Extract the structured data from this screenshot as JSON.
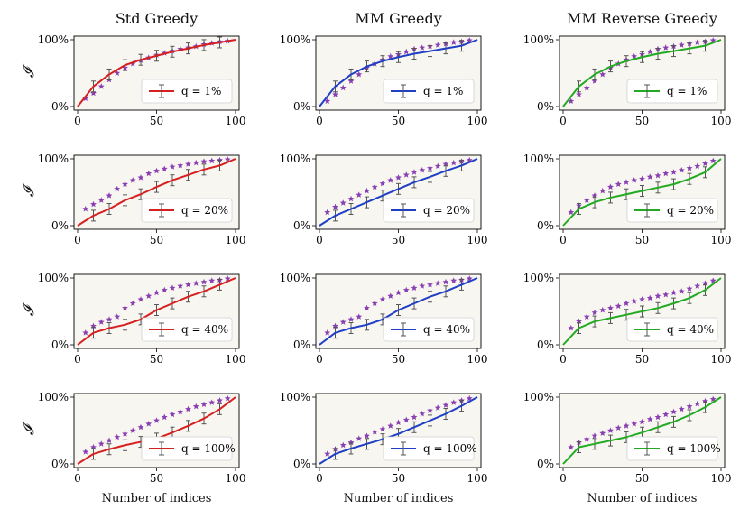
{
  "chart_data": {
    "type": "line",
    "layout": "3x4 grid of subplots",
    "columns": [
      {
        "title": "Std Greedy",
        "color": "#d62020"
      },
      {
        "title": "MM Greedy",
        "color": "#1f3fc4"
      },
      {
        "title": "MM Reverse Greedy",
        "color": "#22aa22"
      }
    ],
    "rows": [
      {
        "q_label": "q = 1%"
      },
      {
        "q_label": "q = 20%"
      },
      {
        "q_label": "q = 40%"
      },
      {
        "q_label": "q = 100%"
      }
    ],
    "xlabel": "Number of indices",
    "ylabel": "𝓘",
    "xlim": [
      0,
      100
    ],
    "ylim": [
      0,
      100
    ],
    "xticks": [
      "0",
      "50",
      "100"
    ],
    "yticks": [
      "0%",
      "100%"
    ],
    "marker_color": "#8a3fb2",
    "error_bar_color": "#555555",
    "panels": [
      [
        {
          "x": [
            0,
            10,
            20,
            30,
            40,
            50,
            60,
            70,
            80,
            90,
            100
          ],
          "y": [
            0,
            30,
            48,
            62,
            70,
            76,
            82,
            87,
            92,
            96,
            100
          ],
          "stars_x": [
            5,
            10,
            15,
            20,
            25,
            30,
            35,
            40,
            45,
            50,
            55,
            60,
            65,
            70,
            75,
            80,
            85,
            90,
            95
          ],
          "stars": [
            12,
            20,
            30,
            40,
            50,
            58,
            64,
            69,
            73,
            77,
            80,
            83,
            86,
            88,
            90,
            93,
            95,
            97,
            98
          ]
        },
        {
          "x": [
            0,
            10,
            20,
            30,
            40,
            50,
            60,
            70,
            80,
            90,
            100
          ],
          "y": [
            0,
            30,
            48,
            60,
            68,
            74,
            79,
            83,
            87,
            91,
            100
          ],
          "stars_x": [
            5,
            10,
            15,
            20,
            25,
            30,
            35,
            40,
            45,
            50,
            55,
            60,
            65,
            70,
            75,
            80,
            85,
            90,
            95
          ],
          "stars": [
            8,
            18,
            28,
            38,
            48,
            58,
            64,
            70,
            75,
            78,
            82,
            86,
            88,
            90,
            92,
            94,
            96,
            97,
            99
          ]
        },
        {
          "x": [
            0,
            10,
            20,
            30,
            40,
            50,
            60,
            70,
            80,
            90,
            100
          ],
          "y": [
            0,
            30,
            48,
            60,
            68,
            74,
            79,
            83,
            87,
            91,
            100
          ],
          "stars_x": [
            5,
            10,
            15,
            20,
            25,
            30,
            35,
            40,
            45,
            50,
            55,
            60,
            65,
            70,
            75,
            80,
            85,
            90,
            95
          ],
          "stars": [
            8,
            18,
            28,
            38,
            48,
            58,
            64,
            70,
            75,
            78,
            82,
            86,
            88,
            90,
            92,
            94,
            96,
            97,
            99
          ]
        }
      ],
      [
        {
          "x": [
            0,
            10,
            20,
            30,
            40,
            50,
            60,
            70,
            80,
            90,
            100
          ],
          "y": [
            0,
            15,
            25,
            38,
            47,
            58,
            68,
            76,
            84,
            90,
            100
          ],
          "stars_x": [
            5,
            10,
            15,
            20,
            25,
            30,
            35,
            40,
            45,
            50,
            55,
            60,
            65,
            70,
            75,
            80,
            85,
            90,
            95
          ],
          "stars": [
            25,
            32,
            38,
            45,
            55,
            62,
            68,
            72,
            78,
            82,
            85,
            88,
            90,
            92,
            94,
            96,
            97,
            98,
            99
          ]
        },
        {
          "x": [
            0,
            10,
            20,
            30,
            40,
            50,
            60,
            70,
            80,
            90,
            100
          ],
          "y": [
            0,
            15,
            25,
            35,
            45,
            55,
            65,
            73,
            82,
            90,
            100
          ],
          "stars_x": [
            5,
            10,
            15,
            20,
            25,
            30,
            35,
            40,
            45,
            50,
            55,
            60,
            65,
            70,
            75,
            80,
            85,
            90,
            95
          ],
          "stars": [
            20,
            28,
            34,
            40,
            46,
            52,
            58,
            63,
            68,
            72,
            76,
            80,
            83,
            86,
            89,
            92,
            94,
            96,
            98
          ]
        },
        {
          "x": [
            0,
            10,
            20,
            30,
            40,
            50,
            60,
            70,
            80,
            90,
            100
          ],
          "y": [
            0,
            25,
            35,
            42,
            47,
            52,
            57,
            62,
            70,
            80,
            100
          ],
          "stars_x": [
            5,
            10,
            15,
            20,
            25,
            30,
            35,
            40,
            45,
            50,
            55,
            60,
            65,
            70,
            75,
            80,
            85,
            90,
            95
          ],
          "stars": [
            20,
            30,
            38,
            45,
            52,
            58,
            62,
            65,
            68,
            70,
            73,
            75,
            78,
            80,
            83,
            86,
            89,
            93,
            97
          ]
        }
      ],
      [
        {
          "x": [
            0,
            10,
            20,
            30,
            40,
            50,
            60,
            70,
            80,
            90,
            100
          ],
          "y": [
            0,
            18,
            25,
            30,
            38,
            52,
            62,
            72,
            80,
            90,
            100
          ],
          "stars_x": [
            5,
            10,
            15,
            20,
            25,
            30,
            35,
            40,
            45,
            50,
            55,
            60,
            65,
            70,
            75,
            80,
            85,
            90,
            95
          ],
          "stars": [
            18,
            28,
            34,
            38,
            42,
            55,
            62,
            68,
            73,
            78,
            82,
            85,
            88,
            90,
            92,
            94,
            96,
            97,
            99
          ]
        },
        {
          "x": [
            0,
            10,
            20,
            30,
            40,
            50,
            60,
            70,
            80,
            90,
            100
          ],
          "y": [
            0,
            18,
            25,
            30,
            38,
            52,
            62,
            72,
            80,
            90,
            100
          ],
          "stars_x": [
            5,
            10,
            15,
            20,
            25,
            30,
            35,
            40,
            45,
            50,
            55,
            60,
            65,
            70,
            75,
            80,
            85,
            90,
            95
          ],
          "stars": [
            18,
            28,
            34,
            38,
            42,
            55,
            62,
            68,
            73,
            78,
            82,
            85,
            88,
            90,
            92,
            94,
            96,
            97,
            99
          ]
        },
        {
          "x": [
            0,
            10,
            20,
            30,
            40,
            50,
            60,
            70,
            80,
            90,
            100
          ],
          "y": [
            0,
            25,
            35,
            40,
            45,
            50,
            55,
            62,
            70,
            82,
            100
          ],
          "stars_x": [
            5,
            10,
            15,
            20,
            25,
            30,
            35,
            40,
            45,
            50,
            55,
            60,
            65,
            70,
            75,
            80,
            85,
            90,
            95
          ],
          "stars": [
            25,
            35,
            42,
            48,
            52,
            55,
            58,
            62,
            65,
            68,
            70,
            73,
            75,
            78,
            80,
            84,
            88,
            92,
            96
          ]
        }
      ],
      [
        {
          "x": [
            0,
            10,
            20,
            30,
            40,
            50,
            60,
            70,
            80,
            90,
            100
          ],
          "y": [
            0,
            15,
            22,
            28,
            33,
            38,
            47,
            57,
            68,
            82,
            100
          ],
          "stars_x": [
            5,
            10,
            15,
            20,
            25,
            30,
            35,
            40,
            45,
            50,
            55,
            60,
            65,
            70,
            75,
            80,
            85,
            90,
            95
          ],
          "stars": [
            18,
            25,
            30,
            35,
            40,
            45,
            50,
            55,
            60,
            65,
            70,
            74,
            78,
            82,
            86,
            89,
            92,
            95,
            98
          ]
        },
        {
          "x": [
            0,
            10,
            20,
            30,
            40,
            50,
            60,
            70,
            80,
            90,
            100
          ],
          "y": [
            0,
            15,
            23,
            30,
            37,
            45,
            55,
            65,
            75,
            87,
            100
          ],
          "stars_x": [
            5,
            10,
            15,
            20,
            25,
            30,
            35,
            40,
            45,
            50,
            55,
            60,
            65,
            70,
            75,
            80,
            85,
            90,
            95
          ],
          "stars": [
            15,
            22,
            28,
            32,
            38,
            42,
            48,
            52,
            57,
            62,
            66,
            70,
            75,
            80,
            84,
            88,
            92,
            95,
            98
          ]
        },
        {
          "x": [
            0,
            10,
            20,
            30,
            40,
            50,
            60,
            70,
            80,
            90,
            100
          ],
          "y": [
            0,
            25,
            30,
            35,
            40,
            47,
            55,
            63,
            73,
            85,
            100
          ],
          "stars_x": [
            5,
            10,
            15,
            20,
            25,
            30,
            35,
            40,
            45,
            50,
            55,
            60,
            65,
            70,
            75,
            80,
            85,
            90,
            95
          ],
          "stars": [
            25,
            32,
            37,
            42,
            46,
            50,
            54,
            57,
            60,
            63,
            67,
            70,
            74,
            78,
            82,
            86,
            90,
            94,
            97
          ]
        }
      ]
    ]
  }
}
